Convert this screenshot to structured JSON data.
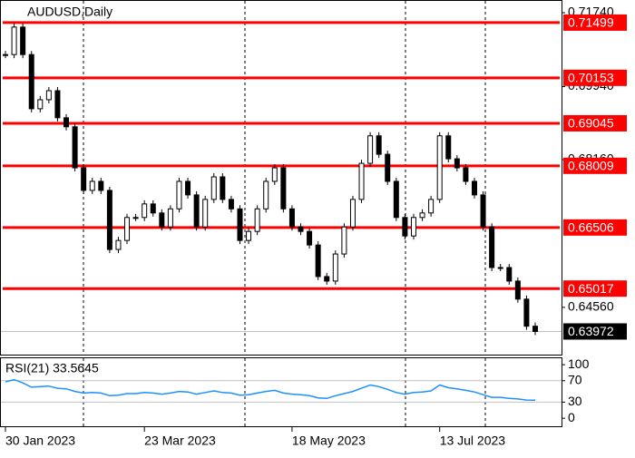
{
  "chart_data": [
    {
      "type": "candlestick",
      "title": "AUDUSD,Daily",
      "color": "#000000",
      "categories": [
        "30 Jan 2023",
        null,
        null,
        null,
        null,
        null,
        null,
        null,
        null,
        null,
        null,
        null,
        null,
        null,
        null,
        null,
        "23 Mar 2023",
        null,
        null,
        null,
        null,
        null,
        null,
        null,
        null,
        null,
        null,
        null,
        null,
        null,
        null,
        null,
        null,
        "18 May 2023",
        null,
        null,
        null,
        null,
        null,
        null,
        null,
        null,
        null,
        null,
        null,
        null,
        null,
        null,
        null,
        null,
        "13 Jul 2023",
        null,
        null,
        null,
        null,
        null,
        null,
        null,
        null,
        null,
        null,
        null
      ],
      "values": [
        0.7072,
        0.7139,
        0.7072,
        0.694,
        0.6962,
        0.6984,
        0.6918,
        0.6896,
        0.6796,
        0.6741,
        0.6763,
        0.6741,
        0.6597,
        0.6619,
        0.6675,
        0.6675,
        0.6708,
        0.6686,
        0.6652,
        0.6696,
        0.6763,
        0.673,
        0.6652,
        0.6719,
        0.6774,
        0.6719,
        0.6696,
        0.6619,
        0.6641,
        0.6696,
        0.6763,
        0.6796,
        0.6696,
        0.6652,
        0.6641,
        0.6608,
        0.6531,
        0.652,
        0.6586,
        0.6652,
        0.6719,
        0.6807,
        0.6874,
        0.6829,
        0.6763,
        0.6675,
        0.663,
        0.6675,
        0.6686,
        0.6719,
        0.6874,
        0.6818,
        0.6796,
        0.6763,
        0.673,
        0.6652,
        0.6553,
        0.6553,
        0.652,
        0.6476,
        0.641,
        0.63972
      ],
      "ylim": [
        0.6343,
        0.7205
      ],
      "yticks": [
        {
          "value": 0.7174,
          "label": "0.71740"
        },
        {
          "value": 0.6994,
          "label": "0.69940"
        },
        {
          "value": 0.6816,
          "label": "0.68160"
        },
        {
          "value": 0.6456,
          "label": "0.64560"
        }
      ],
      "levels": [
        0.71499,
        0.70153,
        0.69045,
        0.68009,
        0.66506,
        0.65017
      ],
      "level_color": "#ff0000",
      "last_price": 0.63972
    },
    {
      "type": "line",
      "title": "RSI(21) 33.5645",
      "color": "#1e90ff",
      "values": [
        68,
        72,
        66,
        58,
        59,
        60,
        56,
        55,
        50,
        47,
        48,
        47,
        42,
        43,
        46,
        46,
        48,
        47,
        45,
        47,
        50,
        49,
        45,
        48,
        51,
        48,
        47,
        43,
        44,
        47,
        50,
        52,
        47,
        45,
        44,
        42,
        38,
        37,
        42,
        46,
        50,
        56,
        62,
        59,
        54,
        48,
        45,
        48,
        49,
        51,
        62,
        57,
        55,
        52,
        49,
        44,
        39,
        39,
        37,
        36,
        34,
        33.5645
      ],
      "ylim": [
        -15,
        112
      ],
      "yticks": [
        100,
        70,
        30,
        0
      ],
      "levels": [
        70,
        30
      ],
      "level_color": "#c0c0c0"
    }
  ]
}
